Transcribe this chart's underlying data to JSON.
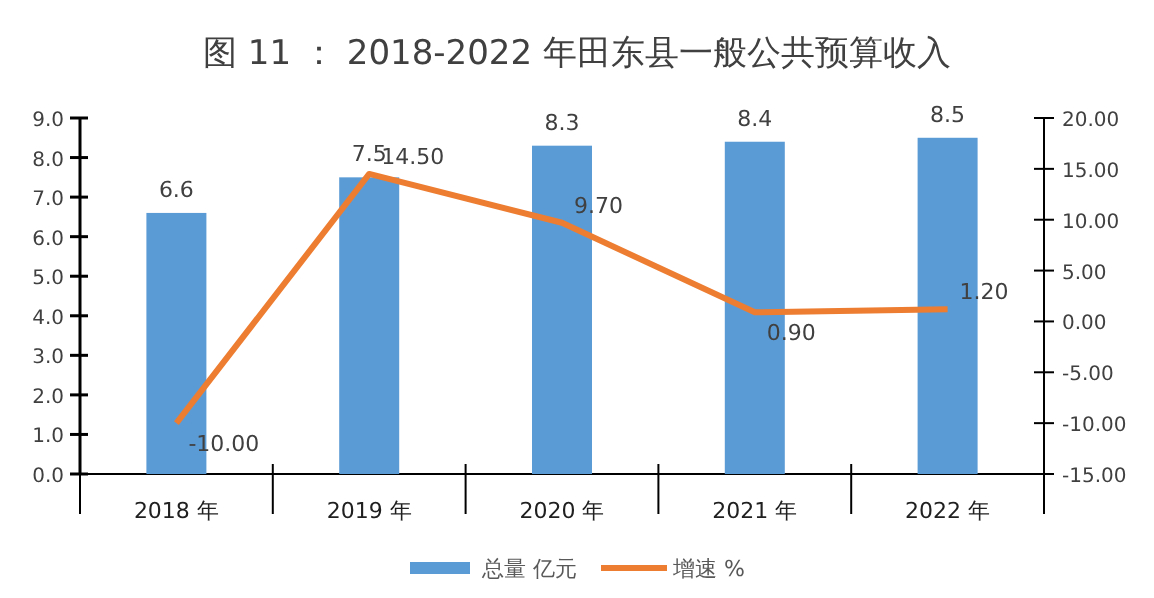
{
  "chart_data": {
    "type": "bar",
    "title": "图 11 ： 2018-2022 年田东县一般公共预算收入",
    "categories": [
      "2018 年",
      "2019 年",
      "2020 年",
      "2021 年",
      "2022 年"
    ],
    "series": [
      {
        "name": "总量 亿元",
        "color": "#5b9bd5",
        "values": [
          6.6,
          7.5,
          8.3,
          8.4,
          8.5
        ],
        "value_labels": [
          "6.6",
          "7.5",
          "8.3",
          "8.4",
          "8.5"
        ]
      },
      {
        "name": "增速  %",
        "type": "line",
        "axis": "y2",
        "color": "#ed7d31",
        "values": [
          -10.0,
          14.5,
          9.7,
          0.9,
          1.2
        ],
        "value_labels": [
          "-10.00",
          "14.50",
          "9.70",
          "0.90",
          "1.20"
        ]
      }
    ],
    "ylim": [
      0,
      9
    ],
    "yticks": [
      {
        "value": 0,
        "label": "0.0"
      },
      {
        "value": 1,
        "label": "1.0"
      },
      {
        "value": 2,
        "label": "2.0"
      },
      {
        "value": 3,
        "label": "3.0"
      },
      {
        "value": 4,
        "label": "4.0"
      },
      {
        "value": 5,
        "label": "5.0"
      },
      {
        "value": 6,
        "label": "6.0"
      },
      {
        "value": 7,
        "label": "7.0"
      },
      {
        "value": 8,
        "label": "8.0"
      },
      {
        "value": 9,
        "label": "9.0"
      }
    ],
    "y2lim": [
      -15,
      20
    ],
    "y2ticks": [
      {
        "value": -15,
        "label": "-15.00"
      },
      {
        "value": -10,
        "label": "-10.00"
      },
      {
        "value": -5,
        "label": "-5.00"
      },
      {
        "value": 0,
        "label": "0.00"
      },
      {
        "value": 5,
        "label": "5.00"
      },
      {
        "value": 10,
        "label": "10.00"
      },
      {
        "value": 15,
        "label": "15.00"
      },
      {
        "value": 20,
        "label": "20.00"
      }
    ],
    "legend": "bottom"
  }
}
